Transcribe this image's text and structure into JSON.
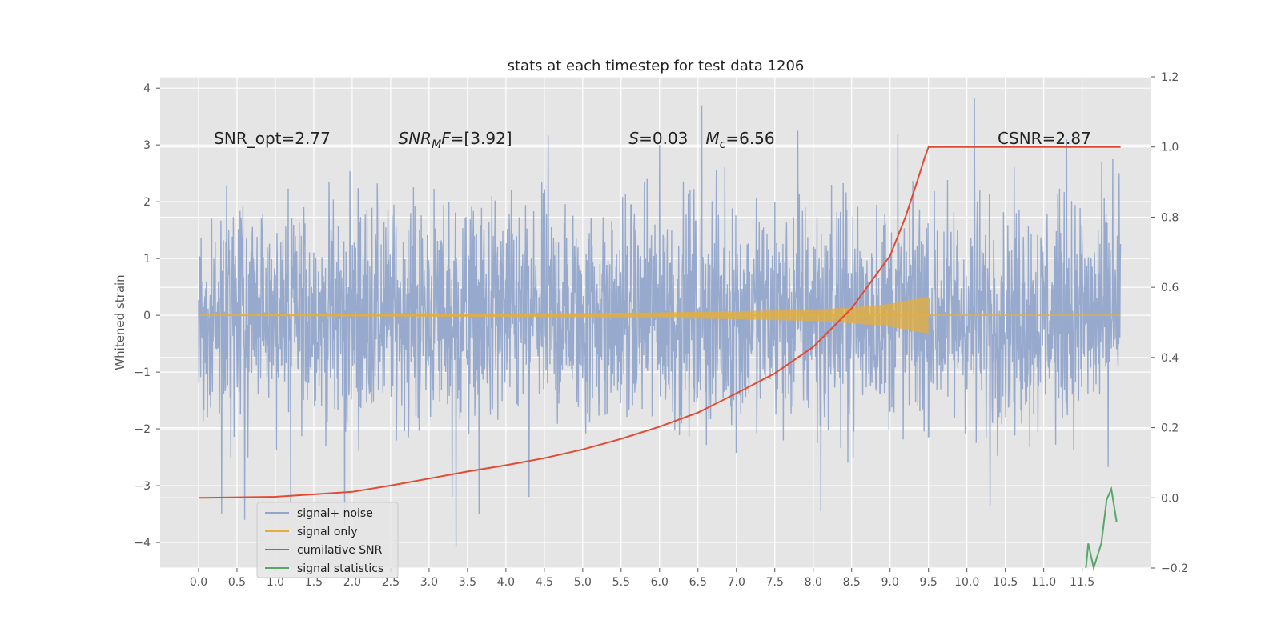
{
  "chart_data": {
    "type": "line",
    "title": "stats at each timestep for test data 1206",
    "ylabel": "Whitened strain",
    "xlim": [
      -0.5,
      12.4
    ],
    "ylim": [
      -4.45,
      4.2
    ],
    "ylim_right": [
      -0.2,
      1.2
    ],
    "grid": true,
    "legend_position": "lower-left",
    "x_ticks": [
      "0.0",
      "0.5",
      "1.0",
      "1.5",
      "2.0",
      "2.5",
      "3.0",
      "3.5",
      "4.0",
      "4.5",
      "5.0",
      "5.5",
      "6.0",
      "6.5",
      "7.0",
      "7.5",
      "8.0",
      "8.5",
      "9.0",
      "9.5",
      "10.0",
      "10.5",
      "11.0",
      "11.5"
    ],
    "y_ticks": [
      "4",
      "3",
      "2",
      "1",
      "0",
      "−1",
      "−2",
      "−3",
      "−4"
    ],
    "y_ticks_right": [
      "1.2",
      "1.0",
      "0.8",
      "0.6",
      "0.4",
      "0.2",
      "0.0",
      "−0.2"
    ],
    "annotations": [
      {
        "text": "SNR_opt=2.77",
        "x": 0.2,
        "y": 3.0
      },
      {
        "text": "SNR_M F=[3.92]",
        "x": 2.6,
        "y": 3.0
      },
      {
        "text": "S=0.03",
        "x": 5.6,
        "y": 3.0
      },
      {
        "text": "M_c=6.56",
        "x": 6.6,
        "y": 3.0
      },
      {
        "text": "CSNR=2.87",
        "x": 10.4,
        "y": 3.0
      }
    ],
    "series": [
      {
        "name": "signal+ noise",
        "color": "#92a6cb",
        "axis": "left",
        "x_range": [
          0.0,
          12.0
        ],
        "envelope_typical": [
          -1.75,
          1.75
        ],
        "outliers": [
          {
            "x": 0.3,
            "y": -3.5
          },
          {
            "x": 0.6,
            "y": -3.6
          },
          {
            "x": 1.2,
            "y": -3.35
          },
          {
            "x": 1.9,
            "y": -3.7
          },
          {
            "x": 3.35,
            "y": -4.08
          },
          {
            "x": 3.3,
            "y": -3.2
          },
          {
            "x": 3.65,
            "y": -3.5
          },
          {
            "x": 4.3,
            "y": -3.2
          },
          {
            "x": 4.55,
            "y": 3.17
          },
          {
            "x": 6.0,
            "y": 3.0
          },
          {
            "x": 6.55,
            "y": 3.7
          },
          {
            "x": 7.8,
            "y": 3.25
          },
          {
            "x": 8.1,
            "y": -3.45
          },
          {
            "x": 9.1,
            "y": 3.2
          },
          {
            "x": 10.1,
            "y": 3.83
          },
          {
            "x": 10.3,
            "y": -3.35
          },
          {
            "x": 11.3,
            "y": 3.1
          },
          {
            "x": 11.9,
            "y": 2.75
          }
        ]
      },
      {
        "name": "signal only",
        "color": "#e5ae38",
        "axis": "left",
        "envelope": {
          "x": [
            0,
            2,
            4,
            6,
            7,
            8,
            8.5,
            9,
            9.3,
            9.5
          ],
          "amp": [
            0.01,
            0.02,
            0.03,
            0.05,
            0.07,
            0.1,
            0.14,
            0.2,
            0.28,
            0.32
          ]
        }
      },
      {
        "name": "cumilative SNR",
        "color": "#e24a33",
        "axis": "right",
        "x": [
          0,
          1,
          2,
          2.5,
          3,
          3.5,
          4,
          4.5,
          5,
          5.5,
          6,
          6.5,
          7,
          7.5,
          8,
          8.5,
          9,
          9.2,
          9.35,
          9.45,
          9.5,
          10,
          11,
          12
        ],
        "y": [
          0.0,
          0.003,
          0.017,
          0.035,
          0.055,
          0.075,
          0.093,
          0.113,
          0.138,
          0.168,
          0.203,
          0.243,
          0.298,
          0.355,
          0.43,
          0.54,
          0.69,
          0.8,
          0.9,
          0.97,
          1.0,
          1.0,
          1.0,
          1.0
        ]
      },
      {
        "name": "signal statistics",
        "color": "#55a868",
        "axis": "right",
        "x": [
          11.55,
          11.58,
          11.65,
          11.75,
          11.82,
          11.88,
          11.95
        ],
        "y": [
          -0.2,
          -0.13,
          -0.2,
          -0.13,
          -0.005,
          0.025,
          -0.07
        ]
      }
    ]
  }
}
